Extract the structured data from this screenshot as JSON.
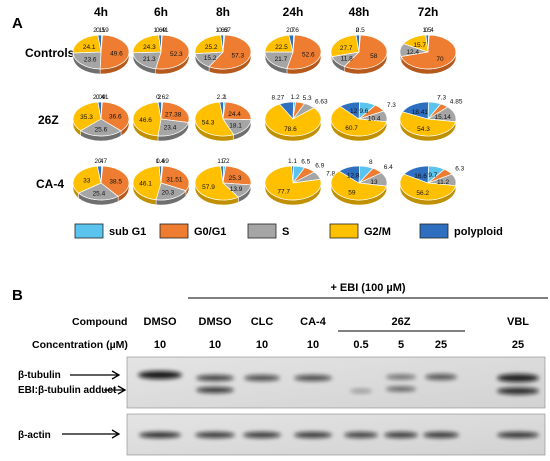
{
  "panel_a": {
    "label": "A",
    "times": [
      "4h",
      "6h",
      "8h",
      "24h",
      "48h",
      "72h"
    ],
    "rows": [
      {
        "name": "Controls",
        "pies": [
          {
            "vals": [
              0.59,
              49.6,
              23.6,
              24.1,
              2.11
            ],
            "labels": [
              "0.59",
              "49.6",
              "23.6",
              "24.1",
              "2.11"
            ]
          },
          {
            "vals": [
              0.41,
              52.3,
              21.3,
              24.3,
              1.69
            ],
            "labels": [
              "0.41",
              "52.3",
              "21.3",
              "24.3",
              "1.69"
            ]
          },
          {
            "vals": [
              0.67,
              57.3,
              15.2,
              25.2,
              1.63
            ],
            "labels": [
              "0.67",
              "57.3",
              "15.2",
              "25.2",
              "1.63"
            ]
          },
          {
            "vals": [
              0.6,
              52.6,
              21.7,
              22.5,
              2.7
            ],
            "labels": [
              "0.6",
              "52.6",
              "21.7",
              "22.5",
              "2.7"
            ]
          },
          {
            "vals": [
              0.5,
              58,
              11.8,
              27.7,
              2
            ],
            "labels": [
              "0.5",
              "58",
              "11.8",
              "27.7",
              "2"
            ]
          },
          {
            "vals": [
              0.4,
              70,
              12.4,
              15.7,
              1.5
            ],
            "labels": [
              "0.4",
              "70",
              "12.4",
              "15.7",
              "1.5"
            ]
          }
        ]
      },
      {
        "name": "26Z",
        "pies": [
          {
            "vals": [
              0.41,
              36.6,
              25.6,
              35.3,
              2.09
            ],
            "labels": [
              "0.41",
              "36.6",
              "25.6",
              "35.3",
              "2.09"
            ]
          },
          {
            "vals": [
              0.62,
              27.38,
              23.4,
              46.6,
              2
            ],
            "labels": [
              "0.62",
              "27.38",
              "23.4",
              "46.6",
              "2"
            ]
          },
          {
            "vals": [
              1,
              24.4,
              18.1,
              54.3,
              2.2
            ],
            "labels": [
              "1",
              "24.4",
              "18.1",
              "54.3",
              "2.2"
            ]
          },
          {
            "vals": [
              1.2,
              5.3,
              6.63,
              78.6,
              8.27
            ],
            "labels": [
              "1.2",
              "5.3",
              "6.63",
              "78.6",
              "8.27"
            ]
          },
          {
            "vals": [
              9.6,
              7.3,
              10.4,
              60.7,
              12
            ],
            "labels": [
              "9.6",
              "7.3",
              "10.4",
              "60.7",
              "12"
            ]
          },
          {
            "vals": [
              7.3,
              4.85,
              15.14,
              54.3,
              18.41
            ],
            "labels": [
              "7.3",
              "4.85",
              "15.14",
              "54.3",
              "18.41"
            ]
          }
        ]
      },
      {
        "name": "CA-4",
        "pies": [
          {
            "vals": [
              0.7,
              38.5,
              25.4,
              33,
              2.4
            ],
            "labels": [
              "0.7",
              "38.5",
              "25.4",
              "33",
              "2.4"
            ]
          },
          {
            "vals": [
              0.69,
              31.51,
              20.3,
              46.1,
              1.4
            ],
            "labels": [
              "0.69",
              "31.51",
              "20.3",
              "46.1",
              "1.4"
            ]
          },
          {
            "vals": [
              1.2,
              25.3,
              13.9,
              57.9,
              1.7
            ],
            "labels": [
              "1.2",
              "25.3",
              "13.9",
              "57.9",
              "1.7"
            ]
          },
          {
            "vals": [
              6.5,
              6.9,
              7.8,
              77.7,
              1.1
            ],
            "labels": [
              "6.5",
              "6.9",
              "7.8",
              "77.7",
              "1.1"
            ]
          },
          {
            "vals": [
              8,
              6.4,
              13,
              59,
              12.8
            ],
            "labels": [
              "8",
              "6.4",
              "13",
              "59",
              "12.8"
            ]
          },
          {
            "vals": [
              9.7,
              6.3,
              11.2,
              56.2,
              16.6
            ],
            "labels": [
              "9.7",
              "6.3",
              "11.2",
              "56.2",
              "16.6"
            ]
          }
        ]
      }
    ],
    "legend": [
      {
        "label": "sub G1",
        "color": "#5bc4ee"
      },
      {
        "label": "G0/G1",
        "color": "#ee7d31"
      },
      {
        "label": "S",
        "color": "#a5a5a5"
      },
      {
        "label": "G2/M",
        "color": "#fec000"
      },
      {
        "label": "polyploid",
        "color": "#2f6fc0"
      }
    ]
  },
  "panel_b": {
    "label": "B",
    "ebi_label": "+ EBI (100 µM)",
    "compound_header": "Compound",
    "concentration_header": "Concentration  (µM)",
    "lanes": [
      {
        "compound": "DMSO",
        "conc": "10"
      },
      {
        "compound": "DMSO",
        "conc": "10"
      },
      {
        "compound": "CLC",
        "conc": "10"
      },
      {
        "compound": "CA-4",
        "conc": "10"
      },
      {
        "compound": "",
        "conc": "0.5"
      },
      {
        "compound": "26Z",
        "conc": "5"
      },
      {
        "compound": "",
        "conc": "25"
      },
      {
        "compound": "VBL",
        "conc": "25"
      }
    ],
    "blot_labels": [
      "β-tubulin",
      "EBI:β-tubulin adduct",
      "β-actin"
    ]
  }
}
